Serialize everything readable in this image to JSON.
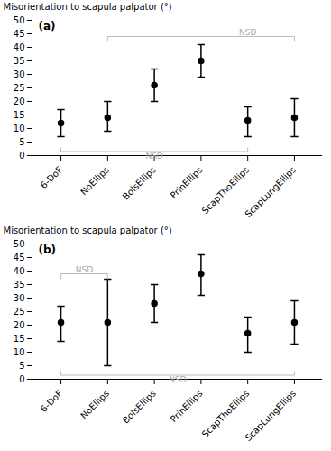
{
  "chart_data": [
    {
      "type": "errorbar",
      "title": "(a)",
      "ylabel": "Misorientation to scapula palpator (°)",
      "categories": [
        "6-DoF",
        "NoEllips",
        "BolsEllips",
        "PrinEllips",
        "ScapThoEllips",
        "ScapLungEllips"
      ],
      "values": [
        12,
        14,
        26,
        35,
        13,
        14
      ],
      "lows": [
        7,
        9,
        20,
        29,
        7,
        7
      ],
      "highs": [
        17,
        20,
        32,
        41,
        18,
        21
      ],
      "color": "black",
      "marker": "circle",
      "ylim": [
        0,
        50
      ],
      "yticks": [
        0,
        5,
        10,
        15,
        20,
        25,
        30,
        35,
        40,
        45,
        50
      ],
      "grid": false,
      "annotations": [
        {
          "text": "NSD",
          "color": "#aaaaaa",
          "side": "bottom",
          "x_start": 0,
          "x_end": 4,
          "y": 1.5,
          "tick": 1.5,
          "label_x": 2.0,
          "label_y": 1.0
        },
        {
          "text": "NSD",
          "color": "#aaaaaa",
          "side": "top",
          "x_start": 1,
          "x_end": 5,
          "y": 44.0,
          "tick": 2.0,
          "label_x": 4.0,
          "label_y": 44.5
        }
      ]
    },
    {
      "type": "errorbar",
      "title": "(b)",
      "ylabel": "Misorientation to scapula palpator (°)",
      "categories": [
        "6-DoF",
        "NoEllips",
        "BolsEllips",
        "PrinEllips",
        "ScapThoEllips",
        "ScapLungEllips"
      ],
      "values": [
        21,
        21,
        28,
        39,
        17,
        21
      ],
      "lows": [
        14,
        5,
        21,
        31,
        10,
        13
      ],
      "highs": [
        27,
        37,
        35,
        46,
        23,
        29
      ],
      "color": "black",
      "marker": "circle",
      "ylim": [
        0,
        50
      ],
      "yticks": [
        0,
        5,
        10,
        15,
        20,
        25,
        30,
        35,
        40,
        45,
        50
      ],
      "grid": false,
      "annotations": [
        {
          "text": "NSD",
          "color": "#aaaaaa",
          "side": "bottom",
          "x_start": 0,
          "x_end": 5,
          "y": 1.5,
          "tick": 1.5,
          "label_x": 2.5,
          "label_y": 1.0
        },
        {
          "text": "NSD",
          "color": "#aaaaaa",
          "side": "top",
          "x_start": 0,
          "x_end": 1,
          "y": 39.0,
          "tick": 2.0,
          "label_x": 0.5,
          "label_y": 39.5
        }
      ]
    }
  ]
}
